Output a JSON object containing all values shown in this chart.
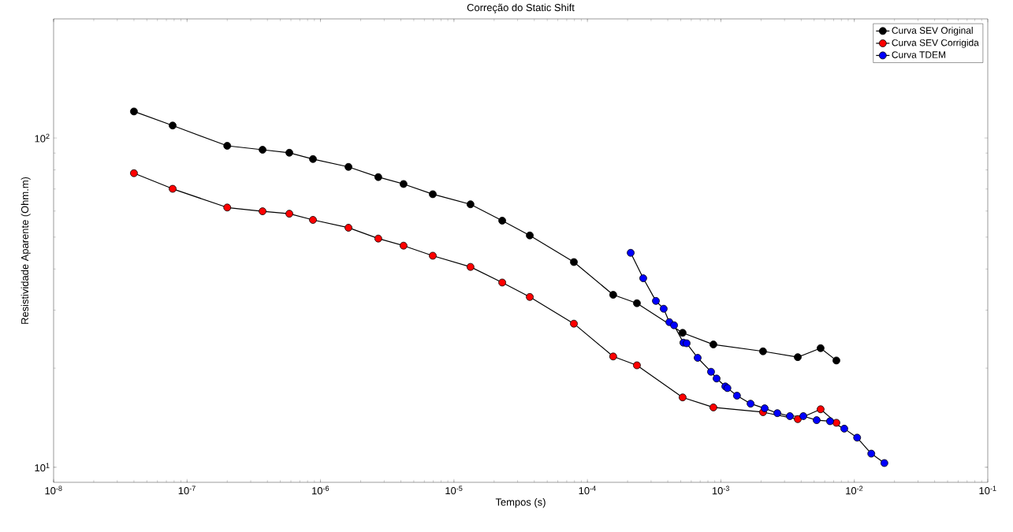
{
  "chart_data": {
    "type": "line",
    "title": "Correção do Static Shift",
    "xlabel": "Tempos (s)",
    "ylabel": "Resistividade Aparente (Ohm.m)",
    "log": "xy",
    "marker": "circle",
    "legend": "top right",
    "xlim": [
      1e-08,
      0.1
    ],
    "ylim": [
      9,
      230
    ],
    "xticks": [
      {
        "value": 1e-08,
        "label": "10$^{-8}$"
      },
      {
        "value": 1e-07,
        "label": "10$^{-7}$"
      },
      {
        "value": 1e-06,
        "label": "10$^{-6}$"
      },
      {
        "value": 1e-05,
        "label": "10$^{-5}$"
      },
      {
        "value": 0.0001,
        "label": "10$^{-4}$"
      },
      {
        "value": 0.001,
        "label": "10$^{-3}$"
      },
      {
        "value": 0.01,
        "label": "10$^{-2}$"
      },
      {
        "value": 0.1,
        "label": "10$^{-1}$"
      }
    ],
    "yticks": [
      {
        "value": 10,
        "label": "10$^{1}$"
      },
      {
        "value": 100,
        "label": "10$^{2}$"
      }
    ],
    "x": [
      4e-08,
      7.8e-08,
      2e-07,
      3.68e-07,
      5.84e-07,
      8.78e-07,
      1.62e-06,
      2.71e-06,
      4.19e-06,
      6.94e-06,
      1.33e-05,
      2.3e-05,
      3.7e-05,
      7.92e-05,
      0.000156,
      0.000235,
      0.000517,
      0.000879,
      0.00207,
      0.00377,
      0.00559,
      0.00734
    ],
    "series": [
      {
        "name": "Curva SEV Original",
        "color": "#000000",
        "values": [
          120.4,
          109.1,
          94.7,
          92.1,
          90.2,
          86.3,
          81.7,
          76.1,
          72.5,
          67.5,
          62.9,
          56.1,
          50.6,
          42.0,
          33.4,
          31.5,
          25.6,
          23.6,
          22.5,
          21.6,
          23.0,
          21.1
        ]
      },
      {
        "name": "Curva SEV Corrigida",
        "color": "#ff0000",
        "values": [
          78.2,
          70.1,
          61.5,
          59.9,
          58.9,
          56.4,
          53.4,
          49.5,
          47.1,
          43.9,
          40.6,
          36.4,
          32.9,
          27.3,
          21.7,
          20.4,
          16.3,
          15.2,
          14.7,
          14.0,
          15.0,
          13.65
        ]
      },
      {
        "name": "Curva TDEM",
        "color": "#0000ff",
        "x": [
          0.000211,
          0.000262,
          0.000326,
          0.000373,
          0.000411,
          0.000446,
          0.000524,
          0.000554,
          0.00067,
          0.000844,
          0.000929,
          0.00108,
          0.00112,
          0.00132,
          0.00167,
          0.00213,
          0.00265,
          0.00329,
          0.00415,
          0.00522,
          0.00658,
          0.00841,
          0.0105,
          0.0134,
          0.0168
        ],
        "values": [
          44.8,
          37.5,
          32.0,
          30.3,
          27.6,
          27.0,
          23.9,
          23.8,
          21.5,
          19.5,
          18.6,
          17.6,
          17.4,
          16.5,
          15.6,
          15.1,
          14.6,
          14.3,
          14.3,
          13.9,
          13.8,
          13.1,
          12.3,
          11.0,
          10.3
        ]
      }
    ]
  }
}
